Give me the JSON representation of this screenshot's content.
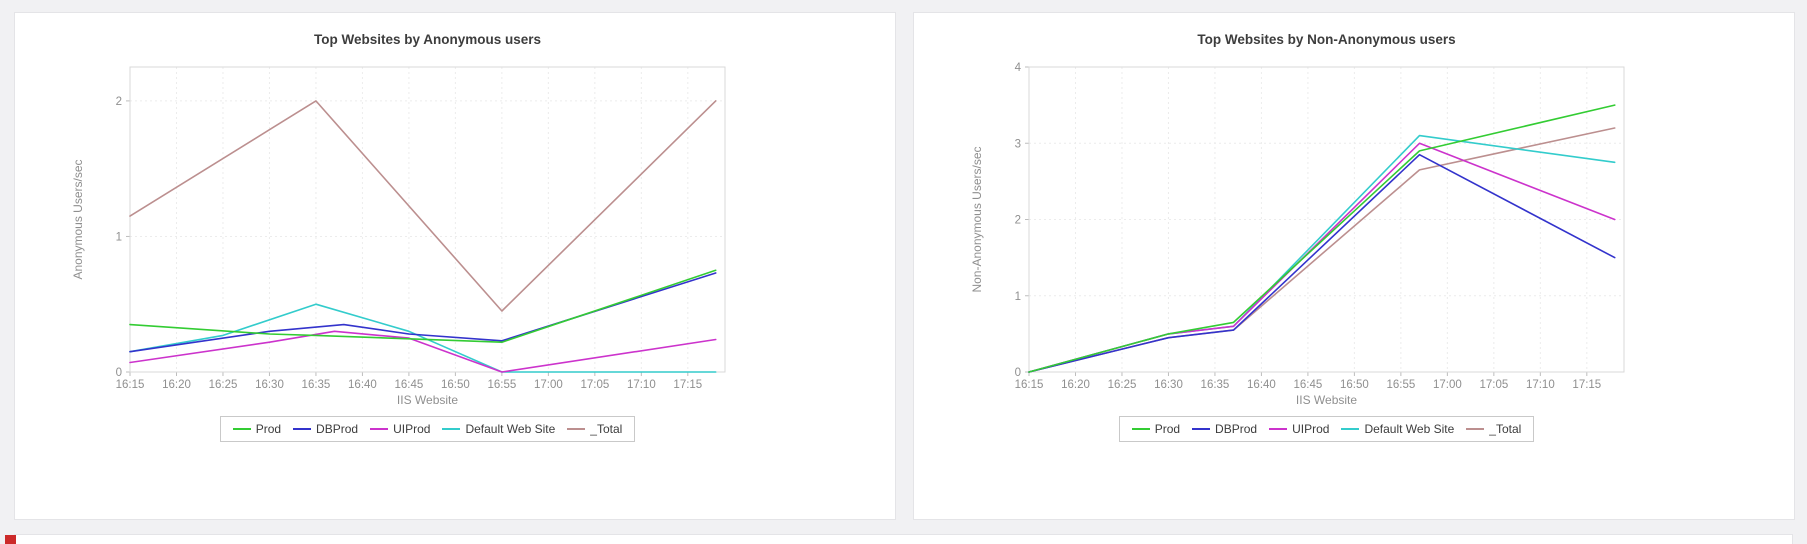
{
  "page": {
    "background": "#f1f1f3"
  },
  "status_bar": {
    "indicator_color": "#cc2a2a"
  },
  "chart_data": [
    {
      "type": "line",
      "title": "Top Websites by Anonymous users",
      "xlabel": "IIS Website",
      "ylabel": "Anonymous Users/sec",
      "x_unit": "minutes since 16:15",
      "xlim": [
        0,
        64
      ],
      "ylim": [
        0,
        2.25
      ],
      "yticks": [
        0,
        1,
        2
      ],
      "grid": true,
      "legend_position": "bottom",
      "xticks": [
        {
          "x": 0,
          "label": "16:15"
        },
        {
          "x": 5,
          "label": "16:20"
        },
        {
          "x": 10,
          "label": "16:25"
        },
        {
          "x": 15,
          "label": "16:30"
        },
        {
          "x": 20,
          "label": "16:35"
        },
        {
          "x": 25,
          "label": "16:40"
        },
        {
          "x": 30,
          "label": "16:45"
        },
        {
          "x": 35,
          "label": "16:50"
        },
        {
          "x": 40,
          "label": "16:55"
        },
        {
          "x": 45,
          "label": "17:00"
        },
        {
          "x": 50,
          "label": "17:05"
        },
        {
          "x": 55,
          "label": "17:10"
        },
        {
          "x": 60,
          "label": "17:15"
        }
      ],
      "series": [
        {
          "name": "Prod",
          "color": "#33cc33",
          "x": [
            0,
            15,
            20,
            40,
            63
          ],
          "y": [
            0.35,
            0.28,
            0.27,
            0.22,
            0.75
          ]
        },
        {
          "name": "DBProd",
          "color": "#3333cc",
          "x": [
            0,
            15,
            23,
            30,
            40,
            63
          ],
          "y": [
            0.15,
            0.3,
            0.35,
            0.28,
            0.23,
            0.73
          ]
        },
        {
          "name": "UIProd",
          "color": "#cc33cc",
          "x": [
            0,
            15,
            22,
            30,
            40,
            63
          ],
          "y": [
            0.07,
            0.22,
            0.3,
            0.25,
            0.0,
            0.24
          ]
        },
        {
          "name": "Default Web Site",
          "color": "#33cccc",
          "x": [
            0,
            10,
            20,
            30,
            40,
            63
          ],
          "y": [
            0.15,
            0.27,
            0.5,
            0.3,
            0.0,
            0.0
          ]
        },
        {
          "name": "_Total",
          "color": "#bc8f8f",
          "x": [
            0,
            20,
            40,
            63
          ],
          "y": [
            1.15,
            2.0,
            0.45,
            2.0
          ]
        }
      ]
    },
    {
      "type": "line",
      "title": "Top Websites by Non-Anonymous users",
      "xlabel": "IIS Website",
      "ylabel": "Non-Anonymous Users/sec",
      "x_unit": "minutes since 16:15",
      "xlim": [
        0,
        64
      ],
      "ylim": [
        0,
        4
      ],
      "yticks": [
        0,
        1,
        2,
        3,
        4
      ],
      "grid": true,
      "legend_position": "bottom",
      "xticks": [
        {
          "x": 0,
          "label": "16:15"
        },
        {
          "x": 5,
          "label": "16:20"
        },
        {
          "x": 10,
          "label": "16:25"
        },
        {
          "x": 15,
          "label": "16:30"
        },
        {
          "x": 20,
          "label": "16:35"
        },
        {
          "x": 25,
          "label": "16:40"
        },
        {
          "x": 30,
          "label": "16:45"
        },
        {
          "x": 35,
          "label": "16:50"
        },
        {
          "x": 40,
          "label": "16:55"
        },
        {
          "x": 45,
          "label": "17:00"
        },
        {
          "x": 50,
          "label": "17:05"
        },
        {
          "x": 55,
          "label": "17:10"
        },
        {
          "x": 60,
          "label": "17:15"
        }
      ],
      "series": [
        {
          "name": "Prod",
          "color": "#33cc33",
          "x": [
            0,
            15,
            22,
            42,
            63
          ],
          "y": [
            0,
            0.5,
            0.65,
            2.9,
            3.5
          ]
        },
        {
          "name": "DBProd",
          "color": "#3333cc",
          "x": [
            0,
            15,
            22,
            42,
            63
          ],
          "y": [
            0,
            0.45,
            0.55,
            2.85,
            1.5
          ]
        },
        {
          "name": "UIProd",
          "color": "#cc33cc",
          "x": [
            0,
            15,
            22,
            42,
            63
          ],
          "y": [
            0,
            0.5,
            0.6,
            3.0,
            2.0
          ]
        },
        {
          "name": "Default Web Site",
          "color": "#33cccc",
          "x": [
            0,
            15,
            22,
            42,
            63
          ],
          "y": [
            0,
            0.5,
            0.6,
            3.1,
            2.75
          ]
        },
        {
          "name": "_Total",
          "color": "#bc8f8f",
          "x": [
            0,
            15,
            22,
            42,
            63
          ],
          "y": [
            0,
            0.45,
            0.55,
            2.65,
            3.2
          ]
        }
      ]
    }
  ]
}
